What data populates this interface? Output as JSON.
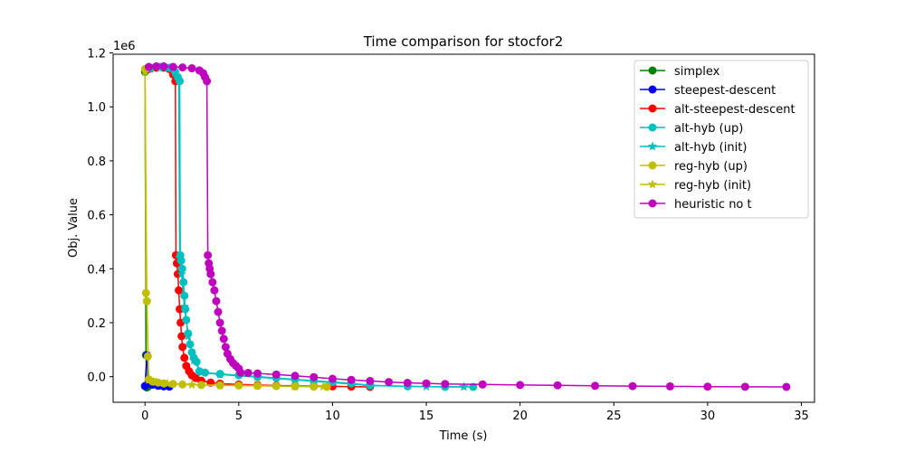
{
  "chart_data": {
    "type": "line",
    "title": "Time comparison for stocfor2",
    "xlabel": "Time (s)",
    "ylabel": "Obj. Value",
    "y_offset_label": "1e6",
    "xlim": [
      -1.7,
      35.7
    ],
    "ylim": [
      -95000,
      1195000
    ],
    "xticks": [
      0,
      5,
      10,
      15,
      20,
      25,
      30,
      35
    ],
    "xtick_labels": [
      "0",
      "5",
      "10",
      "15",
      "20",
      "25",
      "30",
      "35"
    ],
    "yticks": [
      0,
      200000,
      400000,
      600000,
      800000,
      1000000,
      1200000
    ],
    "ytick_labels": [
      "0.0",
      "0.2",
      "0.4",
      "0.6",
      "0.8",
      "1.0",
      "1.2"
    ],
    "grid": false,
    "legend_position": "top-right",
    "series": [
      {
        "name": "simplex",
        "color": "#008000",
        "marker": "circle",
        "points": [
          [
            0,
            1130000
          ],
          [
            0.05,
            80000
          ],
          [
            0.1,
            -40000
          ],
          [
            0.15,
            -38000
          ]
        ]
      },
      {
        "name": "steepest-descent",
        "color": "#0000ff",
        "marker": "circle",
        "points": [
          [
            0,
            -35000
          ],
          [
            0.1,
            80000
          ],
          [
            0.2,
            -20000
          ],
          [
            0.4,
            -30000
          ],
          [
            0.7,
            -34000
          ],
          [
            1.0,
            -36000
          ],
          [
            1.3,
            -37000
          ]
        ]
      },
      {
        "name": "alt-steepest-descent",
        "color": "#ff0000",
        "marker": "circle",
        "points": [
          [
            0.2,
            1140000
          ],
          [
            0.6,
            1145000
          ],
          [
            1.0,
            1145000
          ],
          [
            1.3,
            1140000
          ],
          [
            1.5,
            1120000
          ],
          [
            1.62,
            1095000
          ],
          [
            1.65,
            450000
          ],
          [
            1.7,
            420000
          ],
          [
            1.75,
            380000
          ],
          [
            1.8,
            320000
          ],
          [
            1.85,
            250000
          ],
          [
            1.9,
            200000
          ],
          [
            1.95,
            150000
          ],
          [
            2.0,
            110000
          ],
          [
            2.1,
            70000
          ],
          [
            2.2,
            40000
          ],
          [
            2.35,
            20000
          ],
          [
            2.5,
            5000
          ],
          [
            2.7,
            -5000
          ],
          [
            3.0,
            -15000
          ],
          [
            3.5,
            -22000
          ],
          [
            4.0,
            -26000
          ],
          [
            5.0,
            -29000
          ],
          [
            6.0,
            -31000
          ],
          [
            7.0,
            -33000
          ],
          [
            8.0,
            -34000
          ],
          [
            9.0,
            -35000
          ],
          [
            10.0,
            -36000
          ],
          [
            11.0,
            -37000
          ],
          [
            12.0,
            -38000
          ]
        ]
      },
      {
        "name": "alt-hyb (up)",
        "color": "#00bfbf",
        "marker": "circle",
        "points": [
          [
            0.3,
            1145000
          ],
          [
            0.8,
            1148000
          ],
          [
            1.3,
            1145000
          ],
          [
            1.6,
            1130000
          ],
          [
            1.75,
            1110000
          ],
          [
            1.85,
            1095000
          ],
          [
            1.88,
            450000
          ],
          [
            1.93,
            430000
          ],
          [
            1.98,
            400000
          ],
          [
            2.05,
            350000
          ],
          [
            2.1,
            300000
          ],
          [
            2.15,
            250000
          ],
          [
            2.2,
            210000
          ],
          [
            2.3,
            160000
          ],
          [
            2.4,
            120000
          ],
          [
            2.5,
            90000
          ],
          [
            2.6,
            70000
          ],
          [
            2.75,
            55000
          ],
          [
            2.9,
            20000
          ],
          [
            3.2,
            15000
          ],
          [
            4.0,
            10000
          ],
          [
            5.0,
            5000
          ],
          [
            6.0,
            0
          ],
          [
            7.0,
            -5000
          ],
          [
            8.0,
            -10000
          ],
          [
            9.0,
            -15000
          ],
          [
            10.0,
            -20000
          ],
          [
            11.0,
            -25000
          ],
          [
            12.0,
            -32000
          ],
          [
            14.0,
            -36000
          ],
          [
            16.0,
            -38000
          ],
          [
            17.5,
            -38000
          ]
        ]
      },
      {
        "name": "alt-hyb (init)",
        "color": "#00bfbf",
        "marker": "star",
        "points": [
          [
            0.3,
            1140000
          ],
          [
            1.0,
            1145000
          ],
          [
            1.6,
            1125000
          ],
          [
            1.8,
            1100000
          ],
          [
            1.85,
            440000
          ],
          [
            1.95,
            380000
          ],
          [
            2.1,
            260000
          ],
          [
            2.3,
            150000
          ],
          [
            2.6,
            60000
          ],
          [
            3.0,
            15000
          ],
          [
            4.0,
            8000
          ],
          [
            6.0,
            -2000
          ],
          [
            8.0,
            -12000
          ],
          [
            10.0,
            -22000
          ],
          [
            12.0,
            -33000
          ],
          [
            15.0,
            -37000
          ],
          [
            17.0,
            -38000
          ]
        ]
      },
      {
        "name": "reg-hyb (up)",
        "color": "#bfbf00",
        "marker": "circle",
        "points": [
          [
            0,
            1140000
          ],
          [
            0.05,
            310000
          ],
          [
            0.1,
            280000
          ],
          [
            0.15,
            75000
          ],
          [
            0.2,
            -10000
          ],
          [
            0.4,
            -18000
          ],
          [
            0.7,
            -22000
          ],
          [
            1.0,
            -25000
          ],
          [
            1.5,
            -27000
          ],
          [
            2.0,
            -29000
          ],
          [
            3.0,
            -31000
          ],
          [
            4.0,
            -32000
          ],
          [
            5.0,
            -33000
          ],
          [
            6.0,
            -34000
          ],
          [
            7.0,
            -35000
          ],
          [
            8.0,
            -36000
          ],
          [
            9.0,
            -37000
          ],
          [
            9.7,
            -38000
          ]
        ]
      },
      {
        "name": "reg-hyb (init)",
        "color": "#bfbf00",
        "marker": "star",
        "points": [
          [
            0,
            1130000
          ],
          [
            0.1,
            280000
          ],
          [
            0.2,
            -12000
          ],
          [
            0.6,
            -20000
          ],
          [
            1.2,
            -26000
          ],
          [
            2.5,
            -30000
          ],
          [
            4.0,
            -32000
          ],
          [
            6.0,
            -34000
          ],
          [
            8.0,
            -36000
          ],
          [
            9.5,
            -37000
          ]
        ]
      },
      {
        "name": "heuristic no t",
        "color": "#bf00bf",
        "marker": "circle",
        "points": [
          [
            0.2,
            1148000
          ],
          [
            0.6,
            1150000
          ],
          [
            1.0,
            1150000
          ],
          [
            1.5,
            1148000
          ],
          [
            2.0,
            1146000
          ],
          [
            2.5,
            1143000
          ],
          [
            2.9,
            1135000
          ],
          [
            3.1,
            1125000
          ],
          [
            3.2,
            1110000
          ],
          [
            3.3,
            1095000
          ],
          [
            3.35,
            450000
          ],
          [
            3.4,
            420000
          ],
          [
            3.45,
            400000
          ],
          [
            3.5,
            380000
          ],
          [
            3.6,
            350000
          ],
          [
            3.7,
            320000
          ],
          [
            3.8,
            280000
          ],
          [
            3.9,
            240000
          ],
          [
            4.0,
            200000
          ],
          [
            4.1,
            170000
          ],
          [
            4.2,
            140000
          ],
          [
            4.3,
            110000
          ],
          [
            4.4,
            85000
          ],
          [
            4.55,
            65000
          ],
          [
            4.7,
            50000
          ],
          [
            4.85,
            40000
          ],
          [
            5.0,
            30000
          ],
          [
            5.1,
            15000
          ],
          [
            5.5,
            14000
          ],
          [
            6.0,
            12000
          ],
          [
            7.0,
            8000
          ],
          [
            8.0,
            3000
          ],
          [
            9.0,
            -2000
          ],
          [
            10.0,
            -8000
          ],
          [
            11.0,
            -12000
          ],
          [
            12.0,
            -16000
          ],
          [
            13.0,
            -20000
          ],
          [
            14.0,
            -23000
          ],
          [
            15.0,
            -25000
          ],
          [
            16.0,
            -27000
          ],
          [
            18.0,
            -29000
          ],
          [
            20.0,
            -31000
          ],
          [
            22.0,
            -32000
          ],
          [
            24.0,
            -34000
          ],
          [
            26.0,
            -35000
          ],
          [
            28.0,
            -36000
          ],
          [
            30.0,
            -37000
          ],
          [
            32.0,
            -37500
          ],
          [
            34.2,
            -38000
          ]
        ]
      }
    ]
  }
}
